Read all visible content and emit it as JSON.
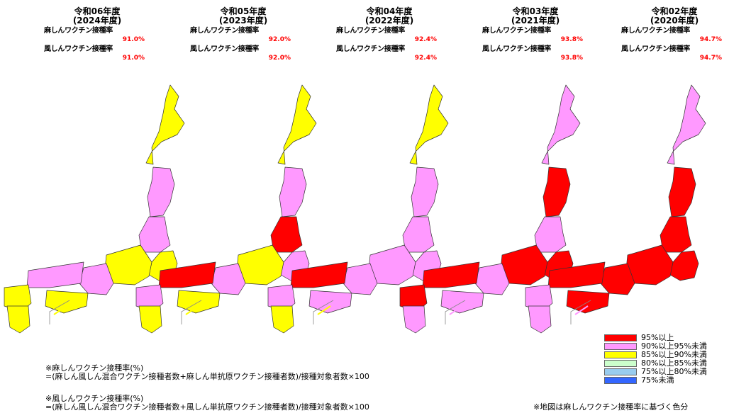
{
  "panels": [
    {
      "era": "令和06年度",
      "year": "(2024年度)",
      "measles_label": "麻しんワクチン接種率",
      "measles_rate": "91.0%",
      "rubella_label": "風しんワクチン接種率",
      "rubella_rate": "91.0%"
    },
    {
      "era": "令和05年度",
      "year": "(2023年度)",
      "measles_label": "麻しんワクチン接種率",
      "measles_rate": "92.0%",
      "rubella_label": "風しんワクチン接種率",
      "rubella_rate": "92.0%"
    },
    {
      "era": "令和04年度",
      "year": "(2022年度)",
      "measles_label": "麻しんワクチン接種率",
      "measles_rate": "92.4%",
      "rubella_label": "風しんワクチン接種率",
      "rubella_rate": "92.4%"
    },
    {
      "era": "令和03年度",
      "year": "(2021年度)",
      "measles_label": "麻しんワクチン接種率",
      "measles_rate": "93.8%",
      "rubella_label": "風しんワクチン接種率",
      "rubella_rate": "93.8%"
    },
    {
      "era": "令和02年度",
      "year": "(2020年度)",
      "measles_label": "麻しんワクチン接種率",
      "measles_rate": "94.7%",
      "rubella_label": "風しんワクチン接種率",
      "rubella_rate": "94.7%"
    }
  ],
  "colors": {
    "ge95": "#ff0000",
    "ge90": "#ff99ff",
    "ge85": "#ffff00",
    "ge80": "#ccffcc",
    "ge75": "#99ccee",
    "lt75": "#3366ff"
  },
  "regions": [
    {
      "name": "hokkaido",
      "classes": [
        "ge85",
        "ge85",
        "ge85",
        "ge90",
        "ge90"
      ]
    },
    {
      "name": "tohoku-north",
      "classes": [
        "ge90",
        "ge90",
        "ge90",
        "ge95",
        "ge95"
      ]
    },
    {
      "name": "tohoku-south",
      "classes": [
        "ge90",
        "ge95",
        "ge90",
        "ge90",
        "ge95"
      ]
    },
    {
      "name": "kanto",
      "classes": [
        "ge85",
        "ge90",
        "ge90",
        "ge95",
        "ge95"
      ]
    },
    {
      "name": "chubu",
      "classes": [
        "ge85",
        "ge85",
        "ge90",
        "ge95",
        "ge95"
      ]
    },
    {
      "name": "kinki",
      "classes": [
        "ge90",
        "ge90",
        "ge90",
        "ge90",
        "ge95"
      ]
    },
    {
      "name": "chugoku",
      "classes": [
        "ge90",
        "ge95",
        "ge95",
        "ge95",
        "ge95"
      ]
    },
    {
      "name": "shikoku",
      "classes": [
        "ge85",
        "ge85",
        "ge90",
        "ge90",
        "ge95"
      ]
    },
    {
      "name": "kyushu-north",
      "classes": [
        "ge85",
        "ge90",
        "ge90",
        "ge95",
        "ge90"
      ]
    },
    {
      "name": "kyushu-south",
      "classes": [
        "ge85",
        "ge85",
        "ge85",
        "ge90",
        "ge90"
      ]
    }
  ],
  "legend": [
    {
      "key": "ge95",
      "label": "95%以上"
    },
    {
      "key": "ge90",
      "label": "90%以上95%未満"
    },
    {
      "key": "ge85",
      "label": "85%以上90%未満"
    },
    {
      "key": "ge80",
      "label": "80%以上85%未満"
    },
    {
      "key": "ge75",
      "label": "75%以上80%未満"
    },
    {
      "key": "lt75",
      "label": "75%未満"
    }
  ],
  "notes": {
    "measles_title": "※麻しんワクチン接種率(%)",
    "measles_formula": "=(麻しん風しん混合ワクチン接種者数+麻しん単抗原ワクチン接種者数)/接種対象者数×100",
    "rubella_title": "※風しんワクチン接種率(%)",
    "rubella_formula": "=(麻しん風しん混合ワクチン接種者数+風しん単抗原ワクチン接種者数)/接種対象者数×100",
    "map_note": "※地図は麻しんワクチン接種率に基づく色分"
  }
}
